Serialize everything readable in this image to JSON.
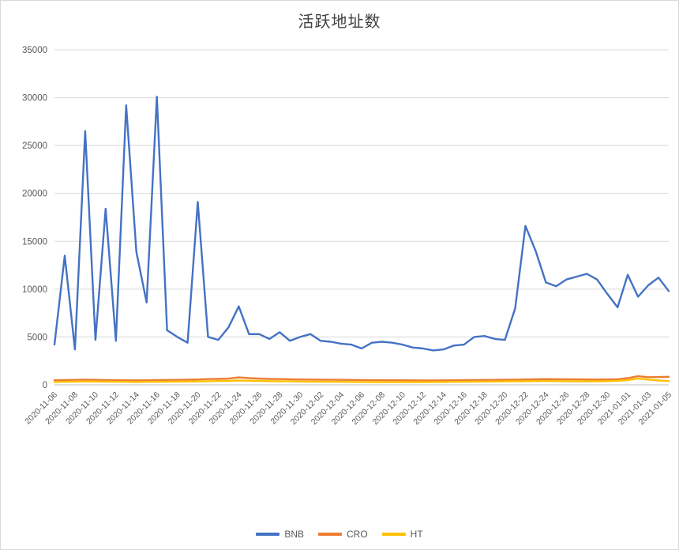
{
  "chart_data": {
    "type": "line",
    "title": "活跃地址数",
    "xlabel": "",
    "ylabel": "",
    "ylim": [
      0,
      35000
    ],
    "y_tick_step": 5000,
    "x_tick_step": 2,
    "grid": true,
    "legend_position": "bottom",
    "x": [
      "2020-11-06",
      "2020-11-07",
      "2020-11-08",
      "2020-11-09",
      "2020-11-10",
      "2020-11-11",
      "2020-11-12",
      "2020-11-13",
      "2020-11-14",
      "2020-11-15",
      "2020-11-16",
      "2020-11-17",
      "2020-11-18",
      "2020-11-19",
      "2020-11-20",
      "2020-11-21",
      "2020-11-22",
      "2020-11-23",
      "2020-11-24",
      "2020-11-25",
      "2020-11-26",
      "2020-11-27",
      "2020-11-28",
      "2020-11-29",
      "2020-11-30",
      "2020-12-01",
      "2020-12-02",
      "2020-12-03",
      "2020-12-04",
      "2020-12-05",
      "2020-12-06",
      "2020-12-07",
      "2020-12-08",
      "2020-12-09",
      "2020-12-10",
      "2020-12-11",
      "2020-12-12",
      "2020-12-13",
      "2020-12-14",
      "2020-12-15",
      "2020-12-16",
      "2020-12-17",
      "2020-12-18",
      "2020-12-19",
      "2020-12-20",
      "2020-12-21",
      "2020-12-22",
      "2020-12-23",
      "2020-12-24",
      "2020-12-25",
      "2020-12-26",
      "2020-12-27",
      "2020-12-28",
      "2020-12-29",
      "2020-12-30",
      "2020-12-31",
      "2021-01-01",
      "2021-01-02",
      "2021-01-03",
      "2021-01-04",
      "2021-01-05"
    ],
    "series": [
      {
        "name": "BNB",
        "color": "#4472C4",
        "values": [
          4200,
          13500,
          3700,
          26500,
          4700,
          18400,
          4600,
          29200,
          13900,
          8600,
          30100,
          5700,
          5000,
          4400,
          19100,
          5000,
          4700,
          6000,
          8200,
          5300,
          5300,
          4800,
          5500,
          4600,
          5000,
          5300,
          4600,
          4500,
          4300,
          4200,
          3800,
          4400,
          4500,
          4400,
          4200,
          3900,
          3800,
          3600,
          3700,
          4100,
          4200,
          5000,
          5100,
          4800,
          4700,
          8000,
          16600,
          14000,
          10700,
          10300,
          11000,
          11300,
          11600,
          11000,
          9500,
          8100,
          11500,
          9200,
          10400,
          11200,
          9800
        ]
      },
      {
        "name": "CRO",
        "color": "#ED7D31",
        "values": [
          480,
          500,
          520,
          540,
          520,
          500,
          490,
          480,
          470,
          480,
          500,
          510,
          520,
          540,
          560,
          600,
          620,
          650,
          780,
          700,
          650,
          620,
          600,
          580,
          560,
          550,
          540,
          530,
          520,
          510,
          500,
          490,
          485,
          480,
          475,
          470,
          465,
          460,
          470,
          480,
          490,
          500,
          510,
          520,
          530,
          540,
          560,
          580,
          600,
          590,
          580,
          570,
          560,
          550,
          560,
          580,
          700,
          900,
          800,
          820,
          840
        ]
      },
      {
        "name": "HT",
        "color": "#FFC000",
        "values": [
          300,
          320,
          340,
          350,
          340,
          330,
          320,
          310,
          300,
          310,
          320,
          330,
          340,
          350,
          360,
          380,
          400,
          420,
          450,
          430,
          410,
          390,
          370,
          360,
          350,
          340,
          330,
          320,
          310,
          300,
          295,
          290,
          285,
          280,
          280,
          285,
          290,
          295,
          300,
          310,
          320,
          330,
          340,
          350,
          360,
          370,
          380,
          390,
          400,
          390,
          380,
          370,
          360,
          370,
          390,
          420,
          500,
          650,
          550,
          450,
          400
        ]
      }
    ]
  }
}
